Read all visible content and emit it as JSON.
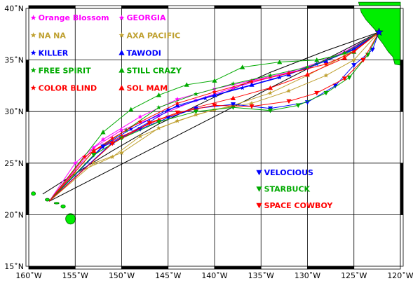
{
  "map": {
    "lon_range": [
      -160,
      -120
    ],
    "lat_range": [
      15,
      40
    ],
    "x_ticks": [
      {
        "lon": -160,
        "label": "160˚W"
      },
      {
        "lon": -155,
        "label": "155˚W"
      },
      {
        "lon": -150,
        "label": "150˚W"
      },
      {
        "lon": -145,
        "label": "145˚W"
      },
      {
        "lon": -140,
        "label": "140˚W"
      },
      {
        "lon": -135,
        "label": "135˚W"
      },
      {
        "lon": -130,
        "label": "130˚W"
      },
      {
        "lon": -125,
        "label": "125˚W"
      },
      {
        "lon": -120,
        "label": "120˚W"
      }
    ],
    "y_ticks": [
      {
        "lat": 15,
        "label": "15˚N"
      },
      {
        "lat": 20,
        "label": "20˚N"
      },
      {
        "lat": 25,
        "label": "25˚N"
      },
      {
        "lat": 30,
        "label": "30˚N"
      },
      {
        "lat": 35,
        "label": "35˚N"
      },
      {
        "lat": 40,
        "label": "40˚N"
      }
    ],
    "grid": true,
    "land_color": "#00ee00",
    "start": {
      "lon": -122.3,
      "lat": 37.7
    },
    "finish": {
      "lon": -157.8,
      "lat": 21.3
    }
  },
  "legend": [
    {
      "name": "Orange Blossom",
      "color": "#ff00ff",
      "marker": "star",
      "lon": -159.5,
      "lat": 39.1
    },
    {
      "name": "GEORGIA",
      "color": "#ff00ff",
      "marker": "star",
      "lon": -150,
      "lat": 39.1
    },
    {
      "name": "NA NA",
      "color": "#bfa030",
      "marker": "star",
      "lon": -159.5,
      "lat": 37.4
    },
    {
      "name": "AXA PACIFIC",
      "color": "#bfa030",
      "marker": "star",
      "lon": -150,
      "lat": 37.4
    },
    {
      "name": "KILLER",
      "color": "#0000ff",
      "marker": "star",
      "lon": -159.5,
      "lat": 35.7
    },
    {
      "name": "TAWODI",
      "color": "#0000ff",
      "marker": "tri-up",
      "lon": -150,
      "lat": 35.7
    },
    {
      "name": "FREE SPIRIT",
      "color": "#00aa00",
      "marker": "star",
      "lon": -159.5,
      "lat": 34.0
    },
    {
      "name": "STILL CRAZY",
      "color": "#00aa00",
      "marker": "tri-up",
      "lon": -150,
      "lat": 34.0
    },
    {
      "name": "COLOR BLIND",
      "color": "#ff0000",
      "marker": "star",
      "lon": -159.5,
      "lat": 32.3
    },
    {
      "name": "SOL MAM",
      "color": "#ff0000",
      "marker": "tri-up",
      "lon": -150,
      "lat": 32.3
    },
    {
      "name": "VELOCIOUS",
      "color": "#0000ff",
      "marker": "tri-down",
      "lon": -135.2,
      "lat": 24.1
    },
    {
      "name": "STARBUCK",
      "color": "#00aa00",
      "marker": "tri-down",
      "lon": -135.2,
      "lat": 22.5
    },
    {
      "name": "SPACE COWBOY",
      "color": "#ff0000",
      "marker": "tri-down",
      "lon": -135.2,
      "lat": 20.9
    }
  ],
  "tracks": [
    {
      "name": "Orange Blossom",
      "color": "#ff00ff",
      "marker": "star",
      "points": [
        [
          -122.3,
          37.7
        ],
        [
          -126,
          35.8
        ],
        [
          -130,
          34.2
        ],
        [
          -134,
          33.3
        ],
        [
          -138,
          32.3
        ],
        [
          -142,
          31.1
        ],
        [
          -146,
          29.6
        ],
        [
          -150,
          28.2
        ],
        [
          -153,
          26.5
        ],
        [
          -157.8,
          21.3
        ]
      ]
    },
    {
      "name": "GEORGIA",
      "color": "#ff00ff",
      "marker": "star",
      "points": [
        [
          -122.3,
          37.7
        ],
        [
          -125,
          36.2
        ],
        [
          -128,
          35.0
        ],
        [
          -132,
          33.8
        ],
        [
          -136,
          33.0
        ],
        [
          -140,
          32.2
        ],
        [
          -144,
          31.2
        ],
        [
          -148,
          29.5
        ],
        [
          -152,
          27.3
        ],
        [
          -155,
          25
        ],
        [
          -157.8,
          21.3
        ]
      ]
    },
    {
      "name": "NA NA",
      "color": "#bfa030",
      "marker": "star",
      "points": [
        [
          -122.3,
          37.7
        ],
        [
          -125,
          35.0
        ],
        [
          -128,
          33.5
        ],
        [
          -132,
          32.0
        ],
        [
          -136,
          30.8
        ],
        [
          -140,
          30.2
        ],
        [
          -144,
          29.1
        ],
        [
          -148,
          27.6
        ],
        [
          -151,
          25.6
        ],
        [
          -155,
          24.0
        ],
        [
          -157.8,
          21.3
        ]
      ]
    },
    {
      "name": "AXA PACIFIC",
      "color": "#bfa030",
      "marker": "star",
      "points": [
        [
          -122.3,
          37.7
        ],
        [
          -126,
          35.4
        ],
        [
          -130,
          33.5
        ],
        [
          -134,
          31.8
        ],
        [
          -138,
          30.6
        ],
        [
          -142,
          29.7
        ],
        [
          -146,
          28.4
        ],
        [
          -150,
          26.0
        ],
        [
          -153,
          25.0
        ],
        [
          -157.8,
          21.3
        ]
      ]
    },
    {
      "name": "KILLER",
      "color": "#0000ff",
      "marker": "star",
      "points": [
        [
          -122.3,
          37.7
        ],
        [
          -125,
          36.0
        ],
        [
          -129,
          34.6
        ],
        [
          -133,
          33.3
        ],
        [
          -137,
          32.3
        ],
        [
          -141,
          31.3
        ],
        [
          -145,
          30.2
        ],
        [
          -149,
          28.3
        ],
        [
          -152,
          26.7
        ],
        [
          -157.8,
          21.3
        ]
      ]
    },
    {
      "name": "TAWODI",
      "color": "#0000ff",
      "marker": "tri-up",
      "points": [
        [
          -122.3,
          37.7
        ],
        [
          -125,
          36.1
        ],
        [
          -128,
          34.9
        ],
        [
          -132,
          33.6
        ],
        [
          -136,
          32.6
        ],
        [
          -140,
          31.6
        ],
        [
          -144,
          30.6
        ],
        [
          -147,
          29.0
        ],
        [
          -151,
          27.0
        ],
        [
          -157.8,
          21.3
        ]
      ]
    },
    {
      "name": "FREE SPIRIT",
      "color": "#00aa00",
      "marker": "star",
      "points": [
        [
          -122.3,
          37.7
        ],
        [
          -126,
          35.7
        ],
        [
          -130,
          34.3
        ],
        [
          -134,
          33.5
        ],
        [
          -138,
          32.7
        ],
        [
          -142,
          31.7
        ],
        [
          -146,
          30.4
        ],
        [
          -149.5,
          28.2
        ],
        [
          -153,
          26.2
        ],
        [
          -157.8,
          21.3
        ]
      ]
    },
    {
      "name": "STILL CRAZY",
      "color": "#00aa00",
      "marker": "tri-up",
      "points": [
        [
          -122.3,
          37.7
        ],
        [
          -125,
          35.8
        ],
        [
          -129,
          35.0
        ],
        [
          -133,
          34.8
        ],
        [
          -137,
          34.3
        ],
        [
          -140,
          33.0
        ],
        [
          -143,
          32.6
        ],
        [
          -146,
          31.6
        ],
        [
          -149,
          30.2
        ],
        [
          -152,
          28.0
        ],
        [
          -157.8,
          21.3
        ]
      ]
    },
    {
      "name": "COLOR BLIND",
      "color": "#ff0000",
      "marker": "star",
      "points": [
        [
          -122.3,
          37.7
        ],
        [
          -125,
          35.8
        ],
        [
          -128,
          34.6
        ],
        [
          -132,
          33.7
        ],
        [
          -136,
          32.9
        ],
        [
          -140,
          31.9
        ],
        [
          -144,
          30.8
        ],
        [
          -148,
          29.0
        ],
        [
          -151,
          27.4
        ],
        [
          -154,
          25.6
        ],
        [
          -157.8,
          21.3
        ]
      ]
    },
    {
      "name": "SOL MAM",
      "color": "#ff0000",
      "marker": "tri-up",
      "points": [
        [
          -122.3,
          37.7
        ],
        [
          -126,
          35.2
        ],
        [
          -130,
          33.6
        ],
        [
          -134,
          32.3
        ],
        [
          -138,
          31.3
        ],
        [
          -142,
          30.4
        ],
        [
          -146,
          29.2
        ],
        [
          -150,
          27.6
        ],
        [
          -153,
          26.2
        ],
        [
          -157.8,
          21.3
        ]
      ]
    },
    {
      "name": "VELOCIOUS",
      "color": "#0000ff",
      "marker": "tri-down",
      "points": [
        [
          -122.3,
          37.7
        ],
        [
          -123,
          36.0
        ],
        [
          -125,
          34.5
        ],
        [
          -127,
          32.5
        ],
        [
          -130,
          30.9
        ],
        [
          -134,
          30.3
        ],
        [
          -138,
          30.7
        ],
        [
          -142,
          30.3
        ],
        [
          -145,
          29.4
        ],
        [
          -148,
          28.3
        ],
        [
          -152,
          26.6
        ],
        [
          -157.8,
          21.3
        ]
      ]
    },
    {
      "name": "STARBUCK",
      "color": "#00aa00",
      "marker": "tri-down",
      "points": [
        [
          -122.3,
          37.7
        ],
        [
          -123.5,
          35.5
        ],
        [
          -125.5,
          33.3
        ],
        [
          -128,
          31.8
        ],
        [
          -131,
          30.6
        ],
        [
          -134,
          30.1
        ],
        [
          -138,
          30.4
        ],
        [
          -142,
          30.0
        ],
        [
          -146,
          29.0
        ],
        [
          -150,
          27.4
        ],
        [
          -153,
          25.8
        ],
        [
          -157.8,
          21.3
        ]
      ]
    },
    {
      "name": "SPACE COWBOY",
      "color": "#ff0000",
      "marker": "tri-down",
      "points": [
        [
          -122.3,
          37.7
        ],
        [
          -124,
          35.0
        ],
        [
          -126,
          33.2
        ],
        [
          -129,
          31.8
        ],
        [
          -132,
          31.0
        ],
        [
          -136,
          30.5
        ],
        [
          -140,
          30.6
        ],
        [
          -144,
          29.9
        ],
        [
          -147,
          28.9
        ],
        [
          -151,
          26.9
        ],
        [
          -157.8,
          21.3
        ]
      ]
    }
  ],
  "great_circle": {
    "color": "#000000",
    "points": [
      [
        -122.3,
        37.7
      ],
      [
        -128,
        35.9
      ],
      [
        -134,
        33.8
      ],
      [
        -140,
        31.4
      ],
      [
        -146,
        28.8
      ],
      [
        -151,
        26.2
      ],
      [
        -155,
        24.0
      ],
      [
        -158.5,
        22.0
      ]
    ]
  },
  "rhumb_line": {
    "color": "#000000",
    "points": [
      [
        -122.3,
        37.7
      ],
      [
        -157.8,
        21.3
      ]
    ]
  }
}
